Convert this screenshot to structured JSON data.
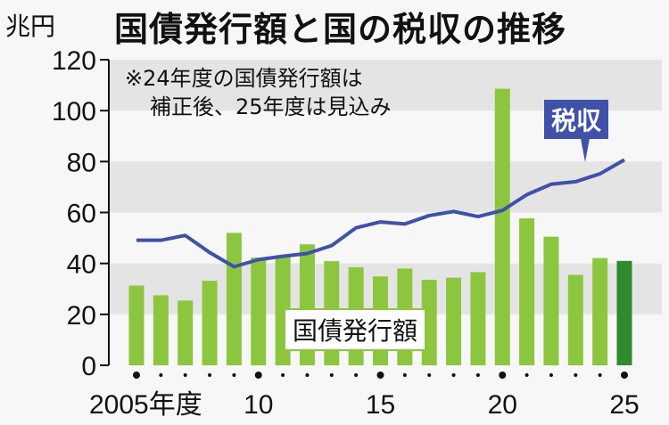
{
  "chart_data": {
    "type": "bar",
    "title": "国債発行額と国の税収の推移",
    "ylabel": "兆円",
    "xlabel": "",
    "ylim": [
      0,
      120
    ],
    "yticks": [
      0,
      20,
      40,
      60,
      80,
      100,
      120
    ],
    "x": [
      2005,
      2006,
      2007,
      2008,
      2009,
      2010,
      2011,
      2012,
      2013,
      2014,
      2015,
      2016,
      2017,
      2018,
      2019,
      2020,
      2021,
      2022,
      2023,
      2024,
      2025
    ],
    "xtick_labels": [
      {
        "year": 2005,
        "label": "2005年度"
      },
      {
        "year": 2010,
        "label": "10"
      },
      {
        "year": 2015,
        "label": "15"
      },
      {
        "year": 2020,
        "label": "20"
      },
      {
        "year": 2025,
        "label": "25"
      }
    ],
    "series": [
      {
        "name": "国債発行額",
        "type": "bar",
        "color": "#8cc63f",
        "values": [
          31.3,
          27.5,
          25.4,
          33.2,
          52.0,
          42.3,
          42.8,
          47.5,
          40.9,
          38.5,
          34.9,
          38.0,
          33.6,
          34.4,
          36.6,
          108.6,
          57.7,
          50.5,
          35.5,
          42.1,
          41.0
        ]
      },
      {
        "name": "税収",
        "type": "line",
        "color": "#3f51a8",
        "values": [
          49.1,
          49.1,
          51.0,
          44.3,
          38.7,
          41.5,
          42.8,
          43.9,
          47.0,
          54.0,
          56.3,
          55.5,
          58.8,
          60.4,
          58.4,
          60.8,
          67.0,
          71.1,
          72.1,
          75.2,
          80.7
        ]
      }
    ],
    "highlight": {
      "year": 2025,
      "color": "#2e8b2e"
    },
    "annotations": [
      "※24年度の国債発行額は",
      "補正後、25年度は見込み"
    ],
    "grid_bands": [
      [
        20,
        40
      ],
      [
        60,
        80
      ],
      [
        100,
        120
      ]
    ]
  }
}
